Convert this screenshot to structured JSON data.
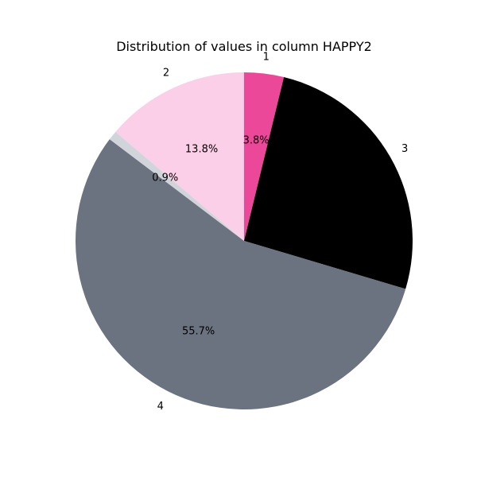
{
  "chart_data": {
    "type": "pie",
    "title": "Distribution of values in column HAPPY2",
    "slices": [
      {
        "label": "1",
        "percent": 3.8,
        "percent_label": "3.8%",
        "color": "#ec4899"
      },
      {
        "label": "3",
        "percent": 25.8,
        "percent_label": "",
        "color": "#000000"
      },
      {
        "label": "4",
        "percent": 55.7,
        "percent_label": "55.7%",
        "color": "#6b7280"
      },
      {
        "label": "",
        "percent": 0.9,
        "percent_label": "0.9%",
        "color": "#d1d5db"
      },
      {
        "label": "2",
        "percent": 13.8,
        "percent_label": "13.8%",
        "color": "#fbcfe8"
      }
    ]
  }
}
